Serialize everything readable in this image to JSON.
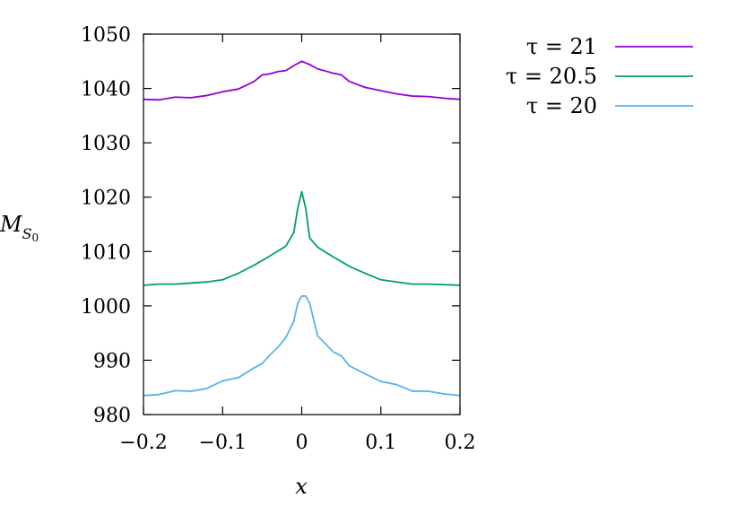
{
  "chart_data": {
    "type": "line",
    "title": "",
    "xlabel": "x",
    "ylabel": "M_{S_0}",
    "xlim": [
      -0.2,
      0.2
    ],
    "ylim": [
      980,
      1050
    ],
    "xticks": [
      -0.2,
      -0.1,
      0,
      0.1,
      0.2
    ],
    "xtick_labels": [
      "−0.2",
      "−0.1",
      "0",
      "0.1",
      "0.2"
    ],
    "yticks": [
      980,
      990,
      1000,
      1010,
      1020,
      1030,
      1040,
      1050
    ],
    "ytick_labels": [
      "980",
      "990",
      "1000",
      "1010",
      "1020",
      "1030",
      "1040",
      "1050"
    ],
    "grid": false,
    "legend_position": "outside-top-right",
    "series": [
      {
        "name": "τ = 21",
        "color": "#9400d3",
        "x": [
          -0.2,
          -0.18,
          -0.16,
          -0.14,
          -0.12,
          -0.1,
          -0.08,
          -0.06,
          -0.05,
          -0.04,
          -0.03,
          -0.02,
          -0.01,
          0,
          0.01,
          0.02,
          0.03,
          0.04,
          0.05,
          0.06,
          0.08,
          0.1,
          0.12,
          0.14,
          0.16,
          0.18,
          0.2
        ],
        "y": [
          1038,
          1037.9,
          1038.4,
          1038.3,
          1038.7,
          1039.4,
          1039.9,
          1041.3,
          1042.5,
          1042.7,
          1043.1,
          1043.3,
          1044.2,
          1045,
          1044.4,
          1043.6,
          1043.2,
          1042.8,
          1042.5,
          1041.3,
          1040.2,
          1039.6,
          1039,
          1038.6,
          1038.5,
          1038.2,
          1038
        ]
      },
      {
        "name": "τ = 20.5",
        "color": "#009e73",
        "x": [
          -0.2,
          -0.18,
          -0.16,
          -0.14,
          -0.12,
          -0.1,
          -0.08,
          -0.06,
          -0.04,
          -0.02,
          -0.01,
          -0.005,
          0,
          0.005,
          0.01,
          0.02,
          0.04,
          0.06,
          0.08,
          0.1,
          0.12,
          0.14,
          0.16,
          0.18,
          0.2
        ],
        "y": [
          1003.8,
          1004,
          1004,
          1004.2,
          1004.4,
          1004.8,
          1006,
          1007.5,
          1009.2,
          1011,
          1013.5,
          1018,
          1021,
          1018,
          1012.5,
          1010.8,
          1009,
          1007.3,
          1006,
          1004.8,
          1004.4,
          1004,
          1004,
          1003.9,
          1003.8
        ]
      },
      {
        "name": "τ = 20",
        "color": "#56b4e9",
        "x": [
          -0.2,
          -0.18,
          -0.16,
          -0.14,
          -0.12,
          -0.1,
          -0.08,
          -0.06,
          -0.05,
          -0.04,
          -0.03,
          -0.02,
          -0.01,
          -0.005,
          0,
          0.005,
          0.01,
          0.02,
          0.03,
          0.04,
          0.05,
          0.06,
          0.08,
          0.1,
          0.12,
          0.14,
          0.16,
          0.18,
          0.2
        ],
        "y": [
          983.5,
          983.7,
          984.4,
          984.3,
          984.8,
          986.2,
          986.8,
          988.6,
          989.4,
          991,
          992.4,
          994.2,
          997.2,
          1000.5,
          1001.8,
          1001.8,
          1000.5,
          994.5,
          993,
          991.5,
          990.8,
          989,
          987.5,
          986.1,
          985.5,
          984.3,
          984.3,
          983.8,
          983.5
        ]
      }
    ]
  }
}
